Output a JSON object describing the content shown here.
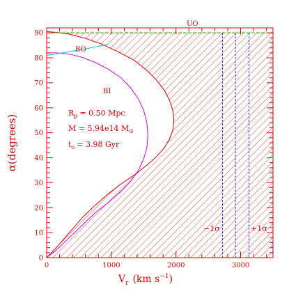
{
  "colors": {
    "axis": "#e00000",
    "boundary": "#e00000",
    "hatch": "#c83030",
    "bi": "#e000e0",
    "bo": "#00c8c8",
    "uo": "#00c000",
    "sigma": "#3030d0"
  },
  "chart_data": {
    "type": "line",
    "xlabel_main": "V",
    "xlabel_sub": "r",
    "xlabel_units": "(km s",
    "xlabel_units_sup": "−1",
    "xlabel_close": ")",
    "ylabel": "α(degrees)",
    "xlim": [
      0,
      3500
    ],
    "ylim": [
      0,
      92
    ],
    "x_ticks": [
      0,
      1000,
      2000,
      3000
    ],
    "y_ticks": [
      0,
      10,
      20,
      30,
      40,
      50,
      60,
      70,
      80,
      90
    ],
    "region_labels": {
      "uo": "UO",
      "bo": "BO",
      "bi": "BI"
    },
    "params": {
      "rp_label": "R",
      "rp_sub": "p",
      "rp_value": "= 0.50 Mpc",
      "m_label": "M = 5.94e14 M",
      "m_sub": "⊙",
      "t_label": "t",
      "t_sub": "o",
      "t_value": "= 3.98 Gyr"
    },
    "sigma_labels": {
      "minus": "−1σ",
      "plus": "+1σ"
    },
    "sigma_lines": [
      2720,
      2920,
      3130
    ],
    "series": [
      {
        "key": "boundary",
        "x": [
          0,
          150,
          350,
          550,
          750,
          950,
          1150,
          1350,
          1550,
          1700,
          1820,
          1900,
          1950,
          1968,
          1950,
          1900,
          1820,
          1700,
          1550,
          1350,
          1100,
          850,
          600,
          350,
          150,
          0
        ],
        "y": [
          0,
          4,
          10,
          16,
          21,
          25.5,
          29.5,
          33,
          37,
          40.5,
          44,
          47.5,
          51,
          55,
          59,
          63,
          67,
          71,
          75,
          79,
          82.5,
          85.5,
          87.8,
          89.5,
          90.2,
          90.5
        ]
      },
      {
        "key": "bi",
        "x": [
          0,
          150,
          350,
          550,
          750,
          950,
          1150,
          1300,
          1420,
          1500,
          1550,
          1565,
          1550,
          1500,
          1420,
          1300,
          1150,
          950,
          750,
          550,
          350,
          150,
          0
        ],
        "y": [
          0,
          3,
          8,
          13,
          18,
          22,
          26.5,
          30.5,
          35,
          39.5,
          44,
          49,
          54,
          59,
          63.5,
          68,
          72,
          75.5,
          78.2,
          80.2,
          81.5,
          82,
          82
        ]
      },
      {
        "key": "bo",
        "x": [
          0,
          200,
          400,
          600,
          800,
          950
        ],
        "y": [
          81,
          81.8,
          82.7,
          83.6,
          84.6,
          85.4
        ]
      },
      {
        "key": "uo",
        "x": [
          0,
          3500
        ],
        "y": [
          90,
          90
        ]
      }
    ]
  }
}
